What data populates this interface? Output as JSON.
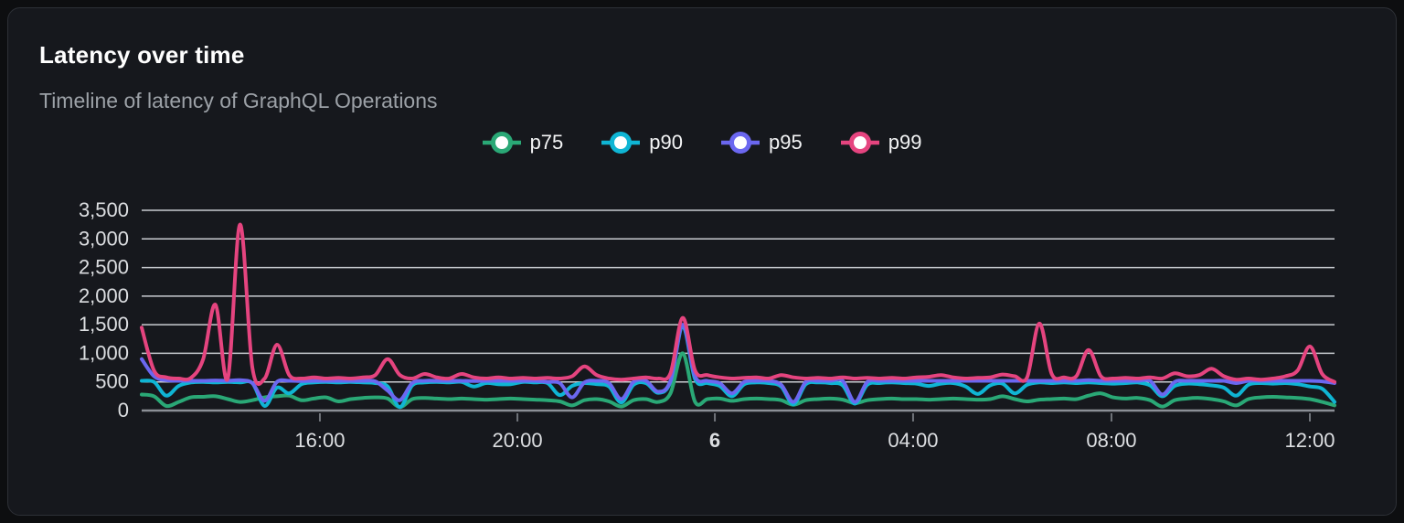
{
  "card": {
    "title": "Latency over time",
    "subtitle": "Timeline of latency of GraphQL Operations"
  },
  "chart_data": {
    "type": "line",
    "title": "Latency over time",
    "subtitle": "Timeline of latency of GraphQL Operations",
    "ylabel": "",
    "xlabel": "",
    "ylim": [
      0,
      3500
    ],
    "grid": true,
    "legend_position": "top-center",
    "colors": {
      "gridline": "#c9ccd1",
      "axis_line": "#8b8f96",
      "tick_mark": "#70747a",
      "tick_label": "#dcdee1",
      "title": "#ffffff",
      "subtitle": "#9ca1a7"
    },
    "y_ticks": [
      {
        "v": 0,
        "label": "0"
      },
      {
        "v": 500,
        "label": "500"
      },
      {
        "v": 1000,
        "label": "1,000"
      },
      {
        "v": 1500,
        "label": "1,500"
      },
      {
        "v": 2000,
        "label": "2,000"
      },
      {
        "v": 2500,
        "label": "2,500"
      },
      {
        "v": 3000,
        "label": "3,000"
      },
      {
        "v": 3500,
        "label": "3,500"
      }
    ],
    "x_ticks": [
      {
        "label": "16:00",
        "f": 0.1494,
        "bold": false
      },
      {
        "label": "20:00",
        "f": 0.315,
        "bold": false
      },
      {
        "label": "6",
        "f": 0.4805,
        "bold": true
      },
      {
        "label": "04:00",
        "f": 0.6467,
        "bold": false
      },
      {
        "label": "08:00",
        "f": 0.813,
        "bold": false
      },
      {
        "label": "12:00",
        "f": 0.9793,
        "bold": false
      }
    ],
    "series": [
      {
        "name": "p75",
        "color": "#2aa876",
        "values": [
          280,
          250,
          80,
          150,
          230,
          240,
          250,
          200,
          150,
          180,
          230,
          250,
          260,
          180,
          210,
          230,
          160,
          200,
          220,
          230,
          210,
          60,
          200,
          220,
          210,
          200,
          210,
          200,
          190,
          200,
          210,
          200,
          190,
          180,
          160,
          90,
          180,
          200,
          160,
          70,
          180,
          200,
          150,
          300,
          1000,
          150,
          200,
          210,
          170,
          200,
          210,
          200,
          180,
          100,
          180,
          200,
          210,
          190,
          130,
          180,
          200,
          210,
          200,
          200,
          190,
          200,
          210,
          200,
          190,
          200,
          250,
          200,
          160,
          190,
          200,
          210,
          200,
          260,
          300,
          230,
          210,
          220,
          180,
          70,
          180,
          210,
          220,
          200,
          160,
          90,
          200,
          230,
          240,
          230,
          220,
          200,
          150,
          90
        ]
      },
      {
        "name": "p90",
        "color": "#0fb5d4",
        "values": [
          520,
          500,
          260,
          430,
          490,
          500,
          490,
          500,
          490,
          480,
          80,
          400,
          300,
          460,
          490,
          500,
          490,
          500,
          490,
          480,
          420,
          60,
          440,
          490,
          500,
          490,
          500,
          420,
          480,
          460,
          460,
          500,
          490,
          480,
          270,
          430,
          480,
          460,
          420,
          140,
          450,
          480,
          310,
          500,
          1470,
          550,
          480,
          430,
          250,
          460,
          490,
          480,
          420,
          110,
          460,
          490,
          480,
          440,
          120,
          450,
          480,
          490,
          480,
          470,
          430,
          470,
          480,
          420,
          290,
          440,
          470,
          300,
          450,
          490,
          480,
          490,
          480,
          490,
          480,
          470,
          480,
          490,
          440,
          250,
          430,
          470,
          460,
          440,
          400,
          260,
          450,
          480,
          470,
          480,
          460,
          420,
          380,
          150
        ]
      },
      {
        "name": "p95",
        "color": "#6b67f0",
        "values": [
          900,
          600,
          530,
          520,
          520,
          520,
          525,
          520,
          530,
          480,
          170,
          500,
          520,
          515,
          520,
          520,
          520,
          520,
          520,
          510,
          350,
          180,
          480,
          520,
          520,
          520,
          520,
          515,
          520,
          520,
          520,
          520,
          520,
          500,
          480,
          230,
          490,
          520,
          480,
          200,
          500,
          520,
          330,
          520,
          1500,
          600,
          520,
          480,
          300,
          500,
          520,
          520,
          450,
          150,
          500,
          520,
          520,
          520,
          150,
          500,
          520,
          520,
          520,
          520,
          520,
          520,
          520,
          520,
          520,
          520,
          520,
          520,
          520,
          520,
          520,
          520,
          520,
          530,
          520,
          520,
          520,
          520,
          520,
          280,
          500,
          520,
          520,
          520,
          520,
          480,
          520,
          520,
          520,
          520,
          520,
          520,
          510,
          480
        ]
      },
      {
        "name": "p99",
        "color": "#e5447f",
        "values": [
          1450,
          700,
          580,
          560,
          570,
          900,
          1850,
          560,
          3250,
          750,
          560,
          1150,
          620,
          560,
          580,
          560,
          570,
          560,
          580,
          620,
          900,
          620,
          560,
          640,
          580,
          560,
          640,
          580,
          560,
          580,
          560,
          570,
          560,
          570,
          560,
          600,
          770,
          620,
          560,
          540,
          560,
          580,
          560,
          650,
          1620,
          700,
          620,
          580,
          560,
          570,
          580,
          560,
          620,
          580,
          560,
          570,
          560,
          580,
          560,
          570,
          560,
          570,
          560,
          580,
          590,
          620,
          580,
          560,
          570,
          580,
          630,
          600,
          580,
          1520,
          640,
          580,
          600,
          1060,
          600,
          560,
          570,
          560,
          580,
          560,
          650,
          600,
          620,
          730,
          600,
          540,
          560,
          540,
          560,
          600,
          700,
          1120,
          640,
          500
        ]
      }
    ]
  }
}
